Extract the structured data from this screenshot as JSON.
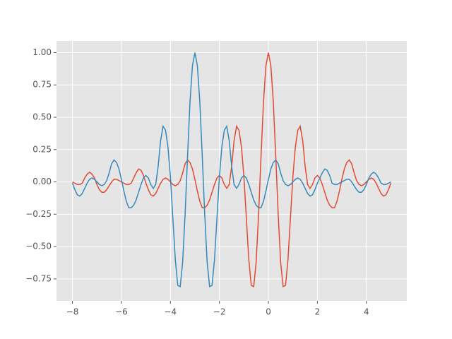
{
  "chart_data": {
    "type": "line",
    "x": [
      -8,
      -7.9,
      -7.8,
      -7.7,
      -7.6,
      -7.5,
      -7.4,
      -7.3,
      -7.2,
      -7.1,
      -7,
      -6.9,
      -6.8,
      -6.7,
      -6.6,
      -6.5,
      -6.4,
      -6.3,
      -6.2,
      -6.1,
      -6,
      -5.9,
      -5.8,
      -5.7,
      -5.6,
      -5.5,
      -5.4,
      -5.3,
      -5.2,
      -5.1,
      -5,
      -4.9,
      -4.8,
      -4.7,
      -4.6,
      -4.5,
      -4.4,
      -4.3,
      -4.2,
      -4.1,
      -4,
      -3.9,
      -3.8,
      -3.7,
      -3.6,
      -3.5,
      -3.4,
      -3.3,
      -3.2,
      -3.1,
      -3,
      -2.9,
      -2.8,
      -2.7,
      -2.6,
      -2.5,
      -2.4,
      -2.3,
      -2.2,
      -2.1,
      -2,
      -1.9,
      -1.8,
      -1.7,
      -1.6,
      -1.5,
      -1.4,
      -1.3,
      -1.2,
      -1.1,
      -1,
      -0.9,
      -0.8,
      -0.7,
      -0.6,
      -0.5,
      -0.4,
      -0.3,
      -0.2,
      -0.1,
      0,
      0.1,
      0.2,
      0.3,
      0.4,
      0.5,
      0.6,
      0.7,
      0.8,
      0.9,
      1,
      1.1,
      1.2,
      1.3,
      1.4,
      1.5,
      1.6,
      1.7,
      1.8,
      1.9,
      2,
      2.1,
      2.2,
      2.3,
      2.4,
      2.5,
      2.6,
      2.7,
      2.8,
      2.9,
      3,
      3.1,
      3.2,
      3.3,
      3.4,
      3.5,
      3.6,
      3.7,
      3.8,
      3.9,
      4,
      4.1,
      4.2,
      4.3,
      4.4,
      4.5,
      4.6,
      4.7,
      4.8,
      4.9,
      5
    ],
    "series": [
      {
        "color": "#E24A33",
        "values": [
          0,
          -0.01,
          -0.02,
          -0.02,
          -0.01,
          0.03,
          0.06,
          0.075,
          0.06,
          0.03,
          -0.02,
          -0.06,
          -0.08,
          -0.08,
          -0.06,
          -0.03,
          0,
          0.02,
          0.02,
          0.01,
          0,
          -0.01,
          -0.02,
          -0.02,
          -0.01,
          0.03,
          0.07,
          0.1,
          0.09,
          0.05,
          -0.01,
          -0.06,
          -0.1,
          -0.11,
          -0.09,
          -0.05,
          -0.01,
          0.02,
          0.03,
          0.02,
          0,
          -0.02,
          -0.03,
          -0.02,
          0.01,
          0.07,
          0.14,
          0.17,
          0.15,
          0.1,
          0.02,
          -0.07,
          -0.15,
          -0.2,
          -0.2,
          -0.18,
          -0.14,
          -0.08,
          -0.02,
          0.03,
          0.05,
          0.03,
          -0.02,
          -0.05,
          -0.02,
          0.12,
          0.32,
          0.43,
          0.4,
          0.27,
          0.04,
          -0.28,
          -0.6,
          -0.8,
          -0.81,
          -0.62,
          -0.25,
          0.2,
          0.62,
          0.9,
          1,
          0.9,
          0.62,
          0.2,
          -0.25,
          -0.62,
          -0.81,
          -0.8,
          -0.6,
          -0.28,
          0.04,
          0.27,
          0.4,
          0.43,
          0.32,
          0.12,
          -0.02,
          -0.05,
          -0.02,
          0.03,
          0.05,
          0.03,
          -0.02,
          -0.08,
          -0.14,
          -0.18,
          -0.2,
          -0.2,
          -0.15,
          -0.07,
          0.02,
          0.1,
          0.15,
          0.17,
          0.14,
          0.07,
          0.01,
          -0.02,
          -0.03,
          -0.02,
          0,
          0.02,
          0.03,
          0.02,
          -0.01,
          -0.05,
          -0.09,
          -0.11,
          -0.1,
          -0.06,
          -0.01
        ]
      },
      {
        "color": "#348ABD",
        "values": [
          -0.01,
          -0.06,
          -0.1,
          -0.11,
          -0.09,
          -0.05,
          -0.01,
          0.02,
          0.03,
          0.02,
          0,
          -0.02,
          -0.03,
          -0.02,
          0.01,
          0.07,
          0.14,
          0.17,
          0.15,
          0.1,
          0.02,
          -0.07,
          -0.15,
          -0.2,
          -0.2,
          -0.18,
          -0.14,
          -0.08,
          -0.02,
          0.03,
          0.05,
          0.03,
          -0.02,
          -0.05,
          -0.02,
          0.12,
          0.32,
          0.43,
          0.4,
          0.27,
          0.04,
          -0.28,
          -0.6,
          -0.8,
          -0.81,
          -0.62,
          -0.25,
          0.2,
          0.62,
          0.9,
          1,
          0.9,
          0.62,
          0.2,
          -0.25,
          -0.62,
          -0.81,
          -0.8,
          -0.6,
          -0.28,
          0.04,
          0.27,
          0.4,
          0.43,
          0.32,
          0.12,
          -0.02,
          -0.05,
          -0.02,
          0.03,
          0.05,
          0.03,
          -0.02,
          -0.08,
          -0.14,
          -0.18,
          -0.2,
          -0.2,
          -0.15,
          -0.07,
          0.02,
          0.1,
          0.15,
          0.17,
          0.14,
          0.07,
          0.01,
          -0.02,
          -0.03,
          -0.02,
          0,
          0.02,
          0.03,
          0.02,
          -0.01,
          -0.05,
          -0.09,
          -0.11,
          -0.1,
          -0.06,
          -0.01,
          0.03,
          0.07,
          0.1,
          0.09,
          0.05,
          -0.01,
          -0.02,
          -0.02,
          -0.01,
          0,
          0.01,
          0.02,
          0.02,
          0,
          -0.03,
          -0.06,
          -0.08,
          -0.08,
          -0.06,
          -0.02,
          0.03,
          0.06,
          0.075,
          0.06,
          0.03,
          -0.01,
          -0.02,
          -0.02,
          -0.01,
          0
        ]
      }
    ],
    "xlim": [
      -8.65,
      5.65
    ],
    "ylim": [
      -0.92,
      1.09
    ],
    "xticks": [
      {
        "value": -8,
        "label": "−8"
      },
      {
        "value": -6,
        "label": "−6"
      },
      {
        "value": -4,
        "label": "−4"
      },
      {
        "value": -2,
        "label": "−2"
      },
      0,
      2,
      4
    ],
    "yticks": [
      {
        "value": -0.75,
        "label": "−0.75"
      },
      {
        "value": -0.5,
        "label": "−0.50"
      },
      {
        "value": -0.25,
        "label": "−0.25"
      },
      {
        "value": 0,
        "label": "0.00"
      },
      {
        "value": 0.25,
        "label": "0.25"
      },
      {
        "value": 0.5,
        "label": "0.50"
      },
      {
        "value": 0.75,
        "label": "0.75"
      },
      {
        "value": 1,
        "label": "1.00"
      }
    ],
    "grid": true
  }
}
